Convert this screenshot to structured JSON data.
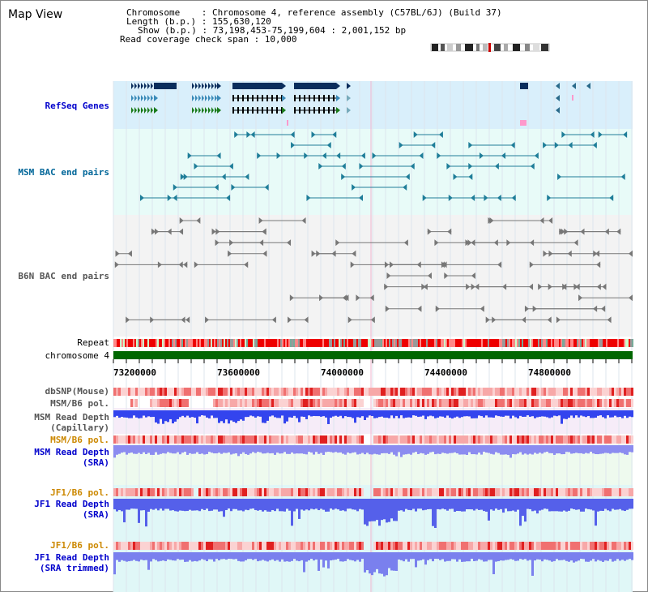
{
  "header": {
    "title": "Map View",
    "chromosome_line": "Chromosome    : Chromosome 4, reference assembly (C57BL/6J) (Build 37)",
    "length_line": "Length (b.p.) : 155,630,120",
    "show_line": "Show (b.p.) : 73,198,453-75,199,604 : 2,001,152 bp",
    "coverage_line": "Read coverage check span : 10,000"
  },
  "tracks": {
    "refseq": "RefSeq Genes",
    "msm_bac": "MSM BAC end pairs",
    "b6n_bac": "B6N BAC end pairs",
    "repeat": "Repeat",
    "chromosome": "chromosome 4",
    "dbsnp": "dbSNP(Mouse)",
    "msm_b6_pol": "MSM/B6 pol.",
    "msm_depth_cap_1": "MSM Read Depth",
    "msm_depth_cap_2": "(Capillary)",
    "msm_b6_pol_2": "MSM/B6 pol.",
    "msm_depth_sra_1": "MSM Read Depth",
    "msm_depth_sra_2": "(SRA)",
    "jf1_b6_pol": "JF1/B6 pol.",
    "jf1_depth_sra_1": "JF1 Read Depth",
    "jf1_depth_sra_2": "(SRA)",
    "jf1_b6_pol_2": "JF1/B6 pol.",
    "jf1_depth_trim_1": "JF1 Read Depth",
    "jf1_depth_trim_2": "(SRA trimmed)"
  },
  "axis": {
    "ticks": [
      "73200000",
      "73600000",
      "74000000",
      "74400000",
      "74800000"
    ]
  },
  "colors": {
    "refseq_label": "#0000cc",
    "msm_bac_label": "#006699",
    "b6n_bac_label": "#555555",
    "pol_label": "#cc8800",
    "depth_label": "#0000cc",
    "chromosome_bar": "#006600"
  }
}
